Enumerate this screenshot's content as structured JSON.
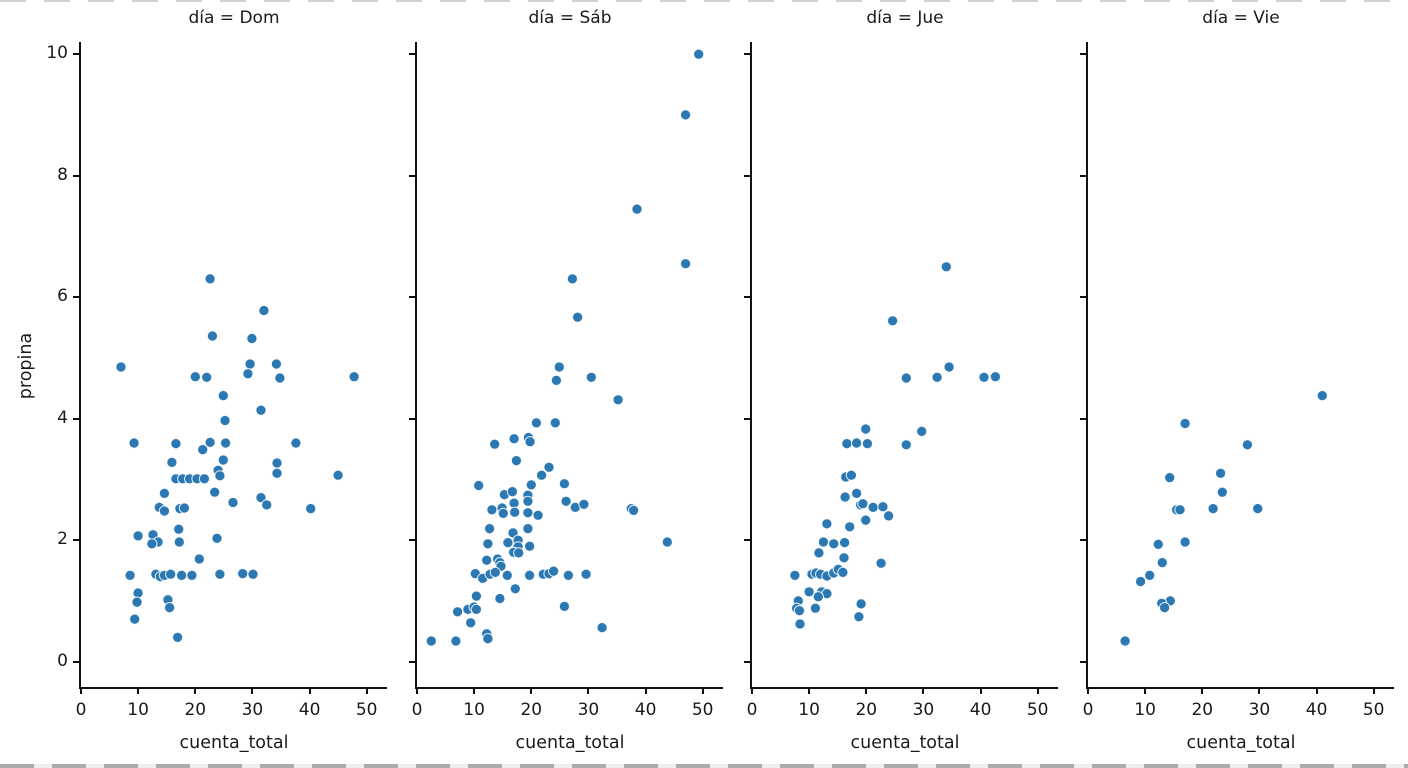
{
  "chart_data": {
    "type": "scatter",
    "facet_by": "día",
    "xlabel": "cuenta_total",
    "ylabel": "propina",
    "x_ticks": [
      0,
      10,
      20,
      30,
      40,
      50
    ],
    "y_ticks": [
      0,
      2,
      4,
      6,
      8,
      10
    ],
    "xlim": [
      0,
      53.9
    ],
    "ylim": [
      -0.45,
      10.2
    ],
    "grid": false,
    "legend": "none",
    "point_color": "#2b78b2",
    "point_edge_color": "#ffffff",
    "facets": [
      {
        "title": "día = Dom",
        "day": "Dom",
        "points": [
          [
            22.6,
            6.3
          ],
          [
            32.0,
            5.78
          ],
          [
            23.0,
            5.36
          ],
          [
            29.9,
            5.32
          ],
          [
            7.0,
            4.85
          ],
          [
            29.6,
            4.9
          ],
          [
            29.2,
            4.74
          ],
          [
            34.2,
            4.9
          ],
          [
            20.0,
            4.69
          ],
          [
            22.0,
            4.68
          ],
          [
            34.8,
            4.67
          ],
          [
            47.8,
            4.69
          ],
          [
            24.9,
            4.38
          ],
          [
            31.5,
            4.14
          ],
          [
            25.2,
            3.97
          ],
          [
            9.3,
            3.6
          ],
          [
            16.6,
            3.59
          ],
          [
            21.3,
            3.49
          ],
          [
            22.6,
            3.61
          ],
          [
            25.3,
            3.6
          ],
          [
            37.6,
            3.6
          ],
          [
            24.9,
            3.32
          ],
          [
            15.9,
            3.28
          ],
          [
            34.3,
            3.27
          ],
          [
            34.3,
            3.1
          ],
          [
            24.0,
            3.15
          ],
          [
            16.6,
            3.01
          ],
          [
            17.8,
            3.01
          ],
          [
            19.0,
            3.01
          ],
          [
            20.3,
            3.01
          ],
          [
            21.6,
            3.01
          ],
          [
            24.3,
            3.06
          ],
          [
            45.0,
            3.07
          ],
          [
            23.4,
            2.79
          ],
          [
            14.6,
            2.77
          ],
          [
            26.6,
            2.62
          ],
          [
            31.5,
            2.7
          ],
          [
            32.5,
            2.58
          ],
          [
            40.2,
            2.52
          ],
          [
            13.7,
            2.54
          ],
          [
            14.6,
            2.48
          ],
          [
            17.3,
            2.52
          ],
          [
            18.1,
            2.53
          ],
          [
            17.1,
            2.18
          ],
          [
            10.0,
            2.07
          ],
          [
            12.6,
            2.09
          ],
          [
            13.5,
            1.97
          ],
          [
            12.4,
            1.94
          ],
          [
            17.2,
            1.97
          ],
          [
            23.8,
            2.03
          ],
          [
            20.7,
            1.69
          ],
          [
            8.6,
            1.42
          ],
          [
            13.1,
            1.44
          ],
          [
            13.9,
            1.4
          ],
          [
            14.6,
            1.42
          ],
          [
            15.7,
            1.44
          ],
          [
            17.6,
            1.42
          ],
          [
            19.4,
            1.42
          ],
          [
            24.3,
            1.44
          ],
          [
            28.3,
            1.45
          ],
          [
            30.1,
            1.44
          ],
          [
            10.0,
            1.13
          ],
          [
            9.8,
            0.98
          ],
          [
            15.2,
            1.02
          ],
          [
            15.5,
            0.89
          ],
          [
            9.4,
            0.7
          ],
          [
            16.9,
            0.4
          ]
        ]
      },
      {
        "title": "día = Sáb",
        "day": "Sáb",
        "points": [
          [
            49.3,
            10.0
          ],
          [
            47.0,
            9.0
          ],
          [
            38.5,
            7.45
          ],
          [
            47.0,
            6.55
          ],
          [
            27.2,
            6.3
          ],
          [
            28.1,
            5.67
          ],
          [
            24.9,
            4.85
          ],
          [
            24.4,
            4.63
          ],
          [
            30.5,
            4.68
          ],
          [
            35.2,
            4.31
          ],
          [
            20.9,
            3.93
          ],
          [
            24.2,
            3.93
          ],
          [
            17.0,
            3.67
          ],
          [
            19.5,
            3.69
          ],
          [
            19.8,
            3.62
          ],
          [
            13.6,
            3.58
          ],
          [
            17.4,
            3.31
          ],
          [
            23.1,
            3.2
          ],
          [
            21.8,
            3.07
          ],
          [
            20.0,
            2.91
          ],
          [
            25.8,
            2.93
          ],
          [
            10.8,
            2.9
          ],
          [
            15.3,
            2.75
          ],
          [
            16.7,
            2.8
          ],
          [
            19.4,
            2.74
          ],
          [
            17.0,
            2.61
          ],
          [
            19.4,
            2.64
          ],
          [
            26.1,
            2.64
          ],
          [
            27.7,
            2.54
          ],
          [
            29.2,
            2.59
          ],
          [
            13.1,
            2.5
          ],
          [
            14.9,
            2.53
          ],
          [
            15.1,
            2.44
          ],
          [
            17.1,
            2.46
          ],
          [
            19.4,
            2.45
          ],
          [
            21.2,
            2.41
          ],
          [
            37.5,
            2.52
          ],
          [
            37.9,
            2.49
          ],
          [
            12.7,
            2.19
          ],
          [
            16.8,
            2.12
          ],
          [
            19.4,
            2.19
          ],
          [
            12.4,
            1.94
          ],
          [
            15.9,
            1.96
          ],
          [
            17.7,
            2.0
          ],
          [
            17.7,
            1.89
          ],
          [
            19.7,
            1.9
          ],
          [
            43.8,
            1.97
          ],
          [
            16.9,
            1.8
          ],
          [
            17.8,
            1.79
          ],
          [
            12.2,
            1.67
          ],
          [
            14.1,
            1.69
          ],
          [
            14.5,
            1.63
          ],
          [
            14.7,
            1.57
          ],
          [
            10.2,
            1.45
          ],
          [
            11.5,
            1.37
          ],
          [
            12.8,
            1.44
          ],
          [
            13.7,
            1.47
          ],
          [
            15.8,
            1.42
          ],
          [
            19.7,
            1.42
          ],
          [
            22.1,
            1.44
          ],
          [
            23.1,
            1.45
          ],
          [
            23.9,
            1.49
          ],
          [
            26.5,
            1.42
          ],
          [
            29.6,
            1.44
          ],
          [
            17.2,
            1.2
          ],
          [
            10.4,
            1.08
          ],
          [
            14.5,
            1.04
          ],
          [
            7.1,
            0.82
          ],
          [
            8.9,
            0.86
          ],
          [
            10.0,
            0.9
          ],
          [
            10.4,
            0.86
          ],
          [
            9.4,
            0.64
          ],
          [
            25.8,
            0.91
          ],
          [
            32.4,
            0.56
          ],
          [
            2.5,
            0.34
          ],
          [
            6.8,
            0.34
          ],
          [
            12.2,
            0.46
          ],
          [
            12.4,
            0.38
          ]
        ]
      },
      {
        "title": "día = Jue",
        "day": "Jue",
        "points": [
          [
            34.0,
            6.5
          ],
          [
            24.6,
            5.61
          ],
          [
            34.5,
            4.85
          ],
          [
            27.0,
            4.67
          ],
          [
            32.4,
            4.68
          ],
          [
            40.6,
            4.68
          ],
          [
            42.6,
            4.69
          ],
          [
            19.9,
            3.83
          ],
          [
            16.6,
            3.59
          ],
          [
            18.3,
            3.6
          ],
          [
            20.2,
            3.59
          ],
          [
            29.7,
            3.79
          ],
          [
            27.0,
            3.57
          ],
          [
            16.4,
            3.04
          ],
          [
            17.4,
            3.07
          ],
          [
            16.3,
            2.71
          ],
          [
            18.3,
            2.77
          ],
          [
            19.0,
            2.58
          ],
          [
            19.4,
            2.6
          ],
          [
            21.2,
            2.54
          ],
          [
            22.9,
            2.55
          ],
          [
            23.9,
            2.4
          ],
          [
            19.9,
            2.33
          ],
          [
            13.1,
            2.27
          ],
          [
            17.1,
            2.22
          ],
          [
            12.5,
            1.97
          ],
          [
            14.3,
            1.94
          ],
          [
            16.2,
            1.96
          ],
          [
            11.7,
            1.79
          ],
          [
            16.1,
            1.71
          ],
          [
            22.6,
            1.62
          ],
          [
            7.5,
            1.42
          ],
          [
            10.5,
            1.44
          ],
          [
            11.2,
            1.46
          ],
          [
            12.0,
            1.44
          ],
          [
            13.1,
            1.41
          ],
          [
            14.3,
            1.46
          ],
          [
            15.1,
            1.52
          ],
          [
            15.9,
            1.47
          ],
          [
            10.0,
            1.15
          ],
          [
            12.2,
            1.15
          ],
          [
            13.1,
            1.12
          ],
          [
            11.6,
            1.07
          ],
          [
            8.1,
            1.0
          ],
          [
            7.8,
            0.88
          ],
          [
            8.3,
            0.84
          ],
          [
            11.1,
            0.88
          ],
          [
            19.1,
            0.95
          ],
          [
            18.7,
            0.74
          ],
          [
            8.4,
            0.62
          ]
        ]
      },
      {
        "title": "día = Vie",
        "day": "Vie",
        "points": [
          [
            41.0,
            4.38
          ],
          [
            17.0,
            3.92
          ],
          [
            27.9,
            3.57
          ],
          [
            14.3,
            3.03
          ],
          [
            23.2,
            3.1
          ],
          [
            23.5,
            2.79
          ],
          [
            15.5,
            2.5
          ],
          [
            16.1,
            2.5
          ],
          [
            21.9,
            2.52
          ],
          [
            29.7,
            2.52
          ],
          [
            12.3,
            1.93
          ],
          [
            17.0,
            1.97
          ],
          [
            13.0,
            1.63
          ],
          [
            10.8,
            1.42
          ],
          [
            9.2,
            1.32
          ],
          [
            14.4,
            1.0
          ],
          [
            12.9,
            0.96
          ],
          [
            13.4,
            0.89
          ],
          [
            6.5,
            0.34
          ]
        ]
      }
    ]
  }
}
